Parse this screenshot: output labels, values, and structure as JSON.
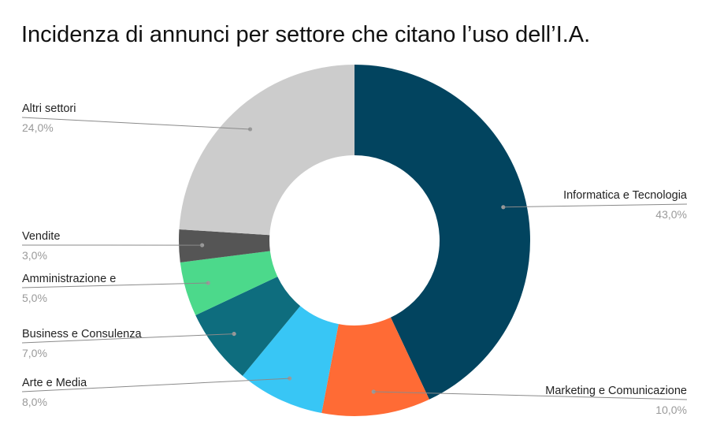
{
  "chart_data": {
    "type": "pie",
    "title": "Incidenza di annunci per settore che citano l’uso dell’I.A.",
    "donut": true,
    "slices": [
      {
        "label": "Informatica e Tecnologia",
        "value": 43.0,
        "value_label": "43,0%",
        "color": "#02445F"
      },
      {
        "label": "Marketing e Comunicazione",
        "value": 10.0,
        "value_label": "10,0%",
        "color": "#FF6B35"
      },
      {
        "label": "Arte e Media",
        "value": 8.0,
        "value_label": "8,0%",
        "color": "#38C6F5"
      },
      {
        "label": "Business e Consulenza",
        "value": 7.0,
        "value_label": "7,0%",
        "color": "#0E6D7E"
      },
      {
        "label": "Amministrazione e",
        "value": 5.0,
        "value_label": "5,0%",
        "color": "#4CD98B"
      },
      {
        "label": "Vendite",
        "value": 3.0,
        "value_label": "3,0%",
        "color": "#555555"
      },
      {
        "label": "Altri settori",
        "value": 24.0,
        "value_label": "24,0%",
        "color": "#CCCCCC"
      }
    ]
  }
}
